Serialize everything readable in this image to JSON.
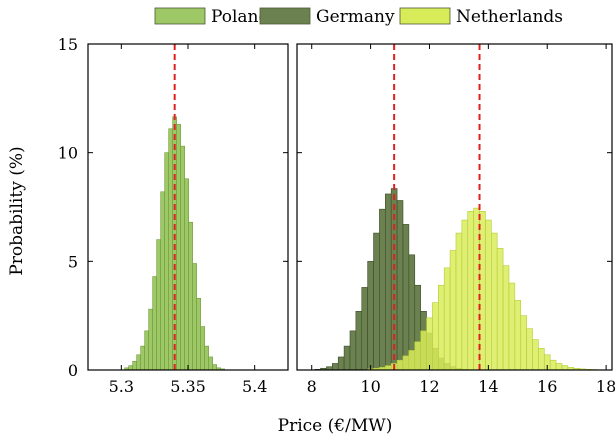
{
  "chart_data": {
    "type": "bar",
    "legend": {
      "placement": "top",
      "entries": [
        {
          "name": "Poland",
          "color": "#9ec766"
        },
        {
          "name": "Germany",
          "color": "#6b8150"
        },
        {
          "name": "Netherlands",
          "color": "#d8ec5a"
        }
      ]
    },
    "xlabel": "Price (€/MW)",
    "ylabel": "Probability (%)",
    "mean_line_color": "#e02020",
    "panels": [
      {
        "xlim": [
          5.275,
          5.425
        ],
        "ylim": [
          0,
          15
        ],
        "xticks": [
          5.3,
          5.35,
          5.4
        ],
        "xtick_labels": [
          "5.3",
          "5.35",
          "5.4"
        ],
        "yticks": [
          0,
          5,
          10,
          15
        ],
        "ytick_labels": [
          "0",
          "5",
          "10",
          "15"
        ],
        "bin_width": 0.003,
        "mean_lines": [
          5.34
        ],
        "series": [
          {
            "name": "Poland",
            "color": "#9ec766",
            "edge": "#6f9a3c",
            "x": [
              5.304,
              5.307,
              5.31,
              5.313,
              5.316,
              5.319,
              5.322,
              5.325,
              5.328,
              5.331,
              5.334,
              5.337,
              5.34,
              5.343,
              5.346,
              5.349,
              5.352,
              5.355,
              5.358,
              5.361,
              5.364,
              5.367,
              5.37,
              5.373,
              5.376
            ],
            "values": [
              0.1,
              0.2,
              0.4,
              0.7,
              1.1,
              1.8,
              2.8,
              4.3,
              6.0,
              8.2,
              10.0,
              11.1,
              11.65,
              11.3,
              10.3,
              8.8,
              6.8,
              4.9,
              3.3,
              2.0,
              1.1,
              0.6,
              0.25,
              0.1,
              0.05
            ]
          }
        ]
      },
      {
        "xlim": [
          7.5,
          18.2
        ],
        "ylim": [
          0,
          15
        ],
        "xticks": [
          8,
          10,
          12,
          14,
          16,
          18
        ],
        "xtick_labels": [
          "8",
          "10",
          "12",
          "14",
          "16",
          "18"
        ],
        "yticks": [
          0,
          5,
          10,
          15
        ],
        "bin_width": 0.2,
        "mean_lines": [
          10.8,
          13.7
        ],
        "series": [
          {
            "name": "Germany",
            "color": "#6b8150",
            "edge": "#3c4c2a",
            "x": [
              8.2,
              8.4,
              8.6,
              8.8,
              9.0,
              9.2,
              9.4,
              9.6,
              9.8,
              10.0,
              10.2,
              10.4,
              10.6,
              10.8,
              11.0,
              11.2,
              11.4,
              11.6,
              11.8,
              12.0,
              12.2,
              12.4,
              12.6,
              12.8,
              13.0,
              13.2
            ],
            "values": [
              0.03,
              0.08,
              0.15,
              0.3,
              0.6,
              1.1,
              1.8,
              2.7,
              3.8,
              5.0,
              6.3,
              7.4,
              8.1,
              8.35,
              7.8,
              6.7,
              5.3,
              3.9,
              2.7,
              1.7,
              1.0,
              0.55,
              0.3,
              0.15,
              0.07,
              0.03
            ]
          },
          {
            "name": "Netherlands",
            "color": "#d8ec5a",
            "edge": "#b4cc34",
            "x": [
              10.0,
              10.2,
              10.4,
              10.6,
              10.8,
              11.0,
              11.2,
              11.4,
              11.6,
              11.8,
              12.0,
              12.2,
              12.4,
              12.6,
              12.8,
              13.0,
              13.2,
              13.4,
              13.6,
              13.8,
              14.0,
              14.2,
              14.4,
              14.6,
              14.8,
              15.0,
              15.2,
              15.4,
              15.6,
              15.8,
              16.0,
              16.2,
              16.4,
              16.6,
              16.8,
              17.0,
              17.2,
              17.4,
              17.6,
              17.8
            ],
            "values": [
              0.05,
              0.08,
              0.12,
              0.2,
              0.3,
              0.45,
              0.65,
              0.9,
              1.3,
              1.8,
              2.4,
              3.1,
              3.9,
              4.7,
              5.5,
              6.3,
              6.9,
              7.3,
              7.45,
              7.3,
              6.9,
              6.3,
              5.6,
              4.8,
              4.0,
              3.2,
              2.5,
              1.9,
              1.4,
              1.0,
              0.7,
              0.45,
              0.3,
              0.2,
              0.12,
              0.08,
              0.05,
              0.03,
              0.02,
              0.01
            ]
          }
        ]
      }
    ]
  }
}
